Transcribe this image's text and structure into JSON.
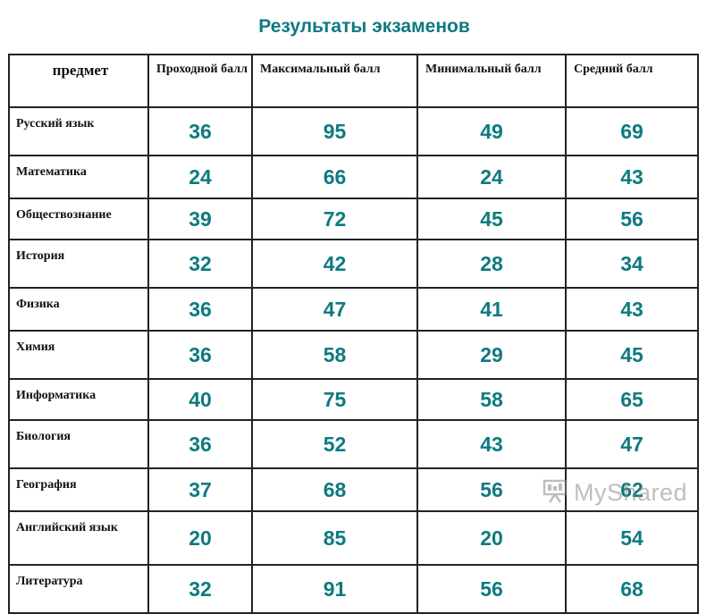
{
  "title": "Результаты экзаменов",
  "table": {
    "headers": [
      "предмет",
      "Проходной балл",
      "Максимальный балл",
      "Минимальный балл",
      "Средний балл"
    ],
    "rows": [
      {
        "subject": "Русский язык",
        "pass": "36",
        "max": "95",
        "min": "49",
        "avg": "69"
      },
      {
        "subject": "Математика",
        "pass": "24",
        "max": "66",
        "min": "24",
        "avg": "43"
      },
      {
        "subject": "Обществознание",
        "pass": "39",
        "max": "72",
        "min": "45",
        "avg": "56"
      },
      {
        "subject": "История",
        "pass": "32",
        "max": "42",
        "min": "28",
        "avg": "34"
      },
      {
        "subject": "Физика",
        "pass": "36",
        "max": "47",
        "min": "41",
        "avg": "43"
      },
      {
        "subject": "Химия",
        "pass": "36",
        "max": "58",
        "min": "29",
        "avg": "45"
      },
      {
        "subject": "Информатика",
        "pass": "40",
        "max": "75",
        "min": "58",
        "avg": "65"
      },
      {
        "subject": "Биология",
        "pass": "36",
        "max": "52",
        "min": "43",
        "avg": "47"
      },
      {
        "subject": "География",
        "pass": "37",
        "max": "68",
        "min": "56",
        "avg": "62"
      },
      {
        "subject": "Английский язык",
        "pass": "20",
        "max": "85",
        "min": "20",
        "avg": "54"
      },
      {
        "subject": "Литература",
        "pass": "32",
        "max": "91",
        "min": "56",
        "avg": "68"
      }
    ]
  },
  "watermark": {
    "text": "MyShared",
    "icon": "presentation-board-icon"
  }
}
